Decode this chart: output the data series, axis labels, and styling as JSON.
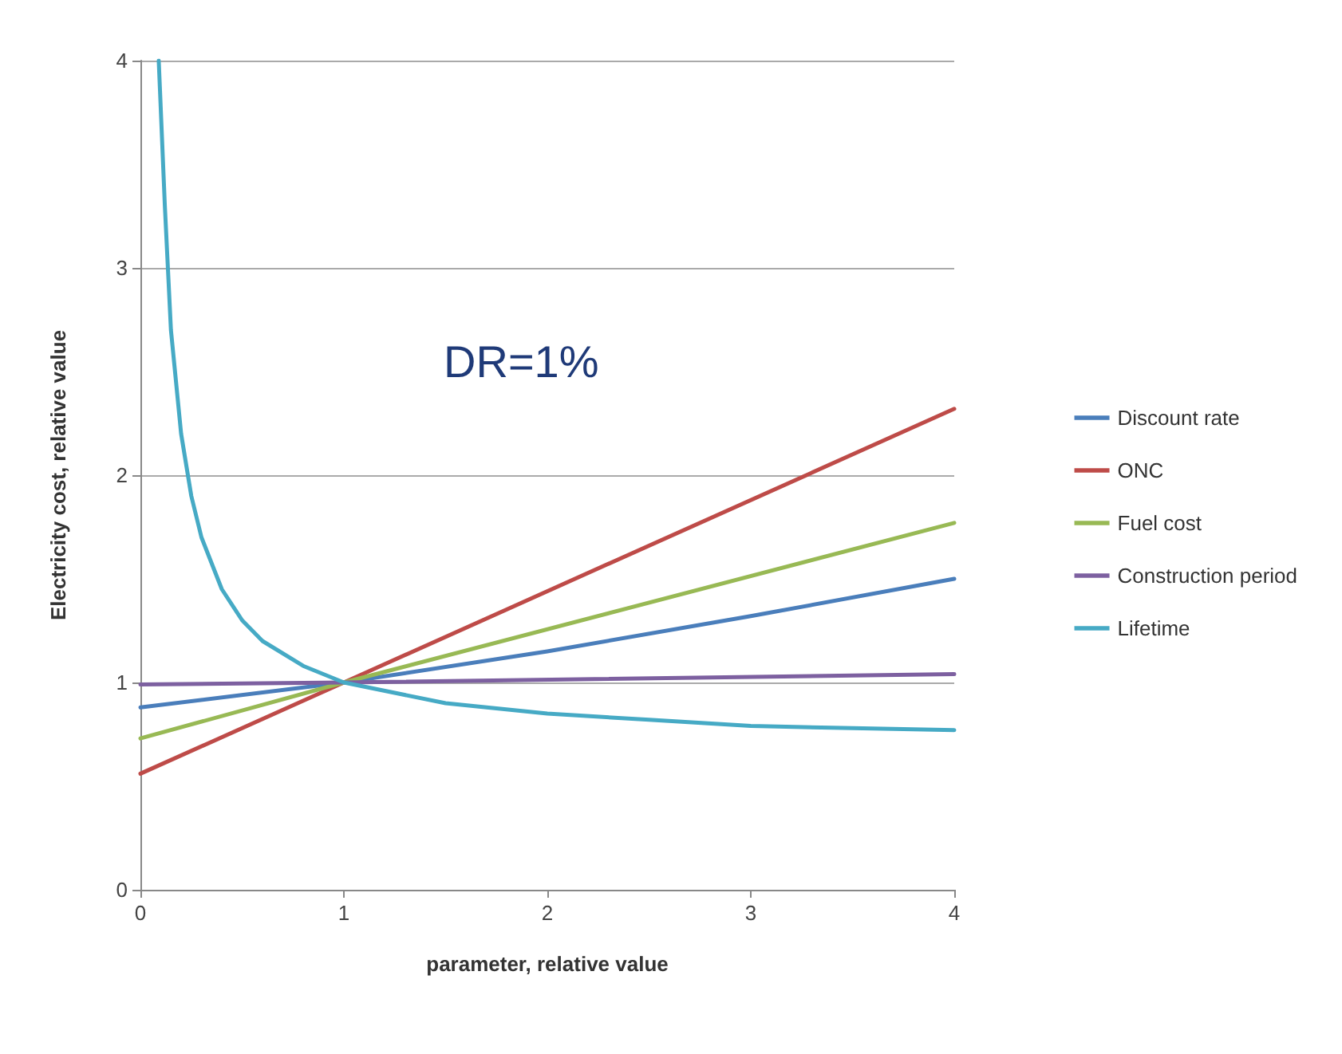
{
  "chart_data": {
    "type": "line",
    "xlabel": "parameter, relative value",
    "ylabel": "Electricity cost, relative value",
    "xlim": [
      0,
      4
    ],
    "ylim": [
      0,
      4
    ],
    "xticks": [
      0,
      1,
      2,
      3,
      4
    ],
    "yticks": [
      0,
      1,
      2,
      3,
      4
    ],
    "grid": "y",
    "legend": "right",
    "marker": "none",
    "line_style": "solid",
    "annotations": [
      "DR=1%"
    ],
    "series": [
      {
        "name": "Discount rate",
        "color": "#4a7ebb",
        "x": [
          0,
          1,
          2,
          3,
          4
        ],
        "values": [
          0.88,
          1,
          1.15,
          1.32,
          1.5
        ]
      },
      {
        "name": "ONC",
        "color": "#be4b48",
        "x": [
          0,
          1,
          4
        ],
        "values": [
          0.56,
          1,
          2.32
        ]
      },
      {
        "name": "Fuel cost",
        "color": "#98b954",
        "x": [
          0,
          1,
          4
        ],
        "values": [
          0.73,
          1,
          1.77
        ]
      },
      {
        "name": "Construction period",
        "color": "#7d60a0",
        "x": [
          0,
          1,
          4
        ],
        "values": [
          0.99,
          1,
          1.04
        ]
      },
      {
        "name": "Lifetime",
        "color": "#46aac5",
        "x": [
          0.09,
          0.12,
          0.15,
          0.2,
          0.25,
          0.3,
          0.4,
          0.5,
          0.6,
          0.8,
          1,
          1.5,
          2,
          2.5,
          3,
          3.5,
          4
        ],
        "values": [
          4,
          3.3,
          2.7,
          2.2,
          1.9,
          1.7,
          1.45,
          1.3,
          1.2,
          1.08,
          1,
          0.9,
          0.85,
          0.82,
          0.79,
          0.78,
          0.77
        ]
      }
    ]
  }
}
